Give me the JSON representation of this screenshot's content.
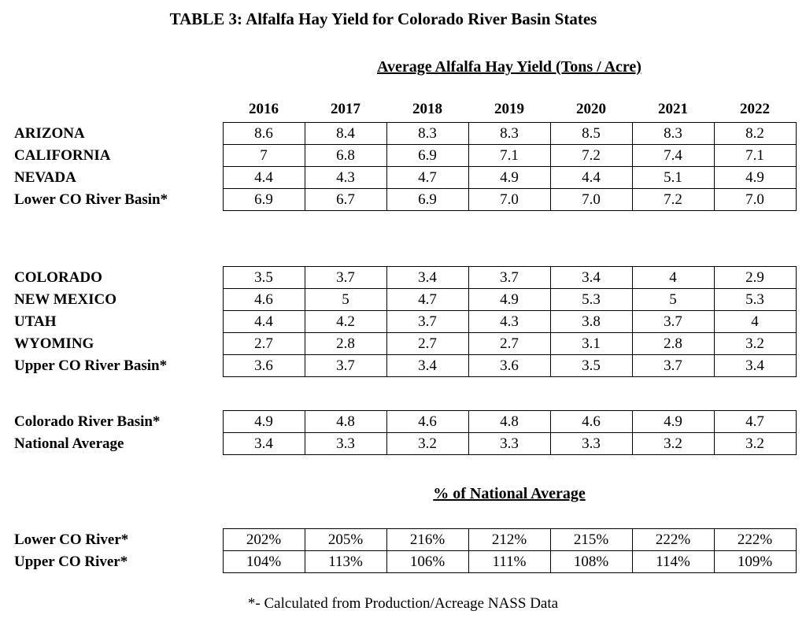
{
  "title": "TABLE 3: Alfalfa Hay Yield for Colorado River Basin States",
  "yield_heading": "Average Alfalfa Hay Yield (Tons / Acre)",
  "pct_heading": "% of National Average",
  "footnote": "*- Calculated from Production/Acreage NASS Data",
  "years": [
    "2016",
    "2017",
    "2018",
    "2019",
    "2020",
    "2021",
    "2022"
  ],
  "lower": {
    "rows": [
      {
        "label": "ARIZONA",
        "v": [
          "8.6",
          "8.4",
          "8.3",
          "8.3",
          "8.5",
          "8.3",
          "8.2"
        ]
      },
      {
        "label": "CALIFORNIA",
        "v": [
          "7",
          "6.8",
          "6.9",
          "7.1",
          "7.2",
          "7.4",
          "7.1"
        ]
      },
      {
        "label": "NEVADA",
        "v": [
          "4.4",
          "4.3",
          "4.7",
          "4.9",
          "4.4",
          "5.1",
          "4.9"
        ]
      },
      {
        "label": "Lower CO River Basin*",
        "v": [
          "6.9",
          "6.7",
          "6.9",
          "7.0",
          "7.0",
          "7.2",
          "7.0"
        ]
      }
    ]
  },
  "upper": {
    "rows": [
      {
        "label": "COLORADO",
        "v": [
          "3.5",
          "3.7",
          "3.4",
          "3.7",
          "3.4",
          "4",
          "2.9"
        ]
      },
      {
        "label": "NEW MEXICO",
        "v": [
          "4.6",
          "5",
          "4.7",
          "4.9",
          "5.3",
          "5",
          "5.3"
        ]
      },
      {
        "label": "UTAH",
        "v": [
          "4.4",
          "4.2",
          "3.7",
          "4.3",
          "3.8",
          "3.7",
          "4"
        ]
      },
      {
        "label": "WYOMING",
        "v": [
          "2.7",
          "2.8",
          "2.7",
          "2.7",
          "3.1",
          "2.8",
          "3.2"
        ]
      },
      {
        "label": "Upper CO River Basin*",
        "v": [
          "3.6",
          "3.7",
          "3.4",
          "3.6",
          "3.5",
          "3.7",
          "3.4"
        ]
      }
    ]
  },
  "summary": {
    "rows": [
      {
        "label": "Colorado River Basin*",
        "v": [
          "4.9",
          "4.8",
          "4.6",
          "4.8",
          "4.6",
          "4.9",
          "4.7"
        ]
      },
      {
        "label": "National Average",
        "v": [
          "3.4",
          "3.3",
          "3.2",
          "3.3",
          "3.3",
          "3.2",
          "3.2"
        ]
      }
    ]
  },
  "pct": {
    "rows": [
      {
        "label": "Lower CO River*",
        "v": [
          "202%",
          "205%",
          "216%",
          "212%",
          "215%",
          "222%",
          "222%"
        ]
      },
      {
        "label": "Upper CO River*",
        "v": [
          "104%",
          "113%",
          "106%",
          "111%",
          "108%",
          "114%",
          "109%"
        ]
      }
    ]
  },
  "chart_data": {
    "type": "table",
    "title": "TABLE 3: Alfalfa Hay Yield for Colorado River Basin States",
    "subtitle": "Average Alfalfa Hay Yield (Tons / Acre)",
    "columns": [
      "2016",
      "2017",
      "2018",
      "2019",
      "2020",
      "2021",
      "2022"
    ],
    "series": [
      {
        "name": "ARIZONA",
        "values": [
          8.6,
          8.4,
          8.3,
          8.3,
          8.5,
          8.3,
          8.2
        ]
      },
      {
        "name": "CALIFORNIA",
        "values": [
          7,
          6.8,
          6.9,
          7.1,
          7.2,
          7.4,
          7.1
        ]
      },
      {
        "name": "NEVADA",
        "values": [
          4.4,
          4.3,
          4.7,
          4.9,
          4.4,
          5.1,
          4.9
        ]
      },
      {
        "name": "Lower CO River Basin*",
        "values": [
          6.9,
          6.7,
          6.9,
          7.0,
          7.0,
          7.2,
          7.0
        ]
      },
      {
        "name": "COLORADO",
        "values": [
          3.5,
          3.7,
          3.4,
          3.7,
          3.4,
          4,
          2.9
        ]
      },
      {
        "name": "NEW MEXICO",
        "values": [
          4.6,
          5,
          4.7,
          4.9,
          5.3,
          5,
          5.3
        ]
      },
      {
        "name": "UTAH",
        "values": [
          4.4,
          4.2,
          3.7,
          4.3,
          3.8,
          3.7,
          4
        ]
      },
      {
        "name": "WYOMING",
        "values": [
          2.7,
          2.8,
          2.7,
          2.7,
          3.1,
          2.8,
          3.2
        ]
      },
      {
        "name": "Upper CO River Basin*",
        "values": [
          3.6,
          3.7,
          3.4,
          3.6,
          3.5,
          3.7,
          3.4
        ]
      },
      {
        "name": "Colorado River Basin*",
        "values": [
          4.9,
          4.8,
          4.6,
          4.8,
          4.6,
          4.9,
          4.7
        ]
      },
      {
        "name": "National Average",
        "values": [
          3.4,
          3.3,
          3.2,
          3.3,
          3.3,
          3.2,
          3.2
        ]
      }
    ],
    "pct_of_national": [
      {
        "name": "Lower CO River*",
        "values": [
          202,
          205,
          216,
          212,
          215,
          222,
          222
        ]
      },
      {
        "name": "Upper CO River*",
        "values": [
          104,
          113,
          106,
          111,
          108,
          114,
          109
        ]
      }
    ],
    "footnote": "*- Calculated from Production/Acreage NASS Data"
  }
}
